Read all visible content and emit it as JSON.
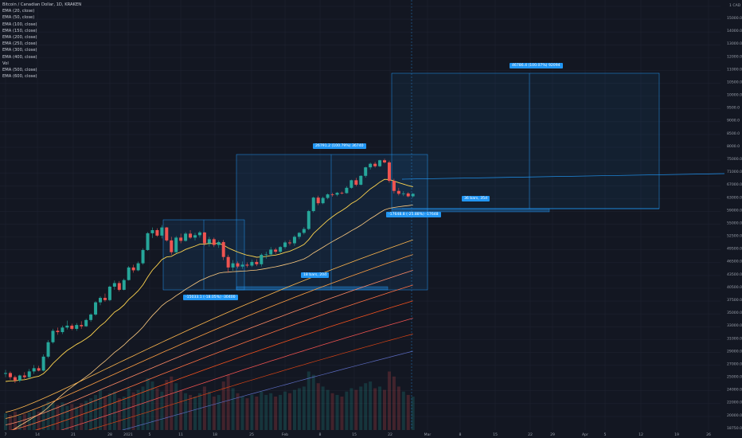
{
  "header": {
    "title": "Bitcoin / Canadian Dollar, 1D, KRAKEN",
    "indicators": [
      "EMA (20, close)",
      "EMA (50, close)",
      "EMA (100, close)",
      "EMA (150, close)",
      "EMA (200, close)",
      "EMA (250, close)",
      "EMA (300, close)",
      "EMA (400, close)",
      "Vol",
      "EMA (500, close)",
      "EMA (600, close)"
    ]
  },
  "price_axis": {
    "currency": "CAD",
    "currency_mark": "1",
    "labels": [
      "15000.0",
      "14000.0",
      "13000.0",
      "12000.0",
      "11000.0",
      "10500.0",
      "10000.0",
      "9500.0",
      "9000.0",
      "8500.0",
      "8000.0",
      "75000.0",
      "71000.0",
      "67000.0",
      "63000.0",
      "59000.0",
      "55000.0",
      "52500.0",
      "49500.0",
      "46500.0",
      "43500.0",
      "40500.0",
      "37500.0",
      "35000.0",
      "33000.0",
      "31000.0",
      "29000.0",
      "27000.0",
      "25000.0",
      "24000.0",
      "22000.0",
      "20000.0",
      "18750.0"
    ]
  },
  "time_axis": {
    "labels": [
      "7",
      "14",
      "21",
      "28",
      "2021",
      "5",
      "11",
      "18",
      "25",
      "Feb",
      "8",
      "15",
      "22",
      "Mar",
      "8",
      "15",
      "22",
      "29",
      "Apr",
      "5",
      "12",
      "19",
      "26"
    ]
  },
  "annotations": {
    "measure_top": "26791.2 (100.79%) 36740",
    "measure_left": "-15033.1 (-18.05%) -30400",
    "measure_left_bars": "18 bars, 20d",
    "measure_right_lower": "-17648.8 (-25.88%) -17648",
    "measure_right_upper": "46786.4 (100.07%) 92094",
    "measure_right_bars": "36 bars, 35d"
  },
  "colors": {
    "background": "#131722",
    "up": "#26a69a",
    "down": "#ef5350",
    "ema20": "#ffd54f",
    "ema_mid": "#ff9f43",
    "ema_long": "#ef5350",
    "measure": "#2196f3"
  },
  "chart_data": {
    "type": "candlestick",
    "title": "Bitcoin / Canadian Dollar, 1D, KRAKEN",
    "x_start": "2020-12-03",
    "candles": [
      [
        23300,
        23800,
        22900,
        23400
      ],
      [
        23400,
        23600,
        22600,
        22900
      ],
      [
        22900,
        23100,
        22200,
        22500
      ],
      [
        22500,
        23200,
        22300,
        23100
      ],
      [
        23100,
        23500,
        22700,
        22900
      ],
      [
        22900,
        23900,
        22700,
        23600
      ],
      [
        23600,
        24400,
        23300,
        24000
      ],
      [
        24000,
        24300,
        23600,
        23700
      ],
      [
        23700,
        25800,
        23600,
        25500
      ],
      [
        25500,
        27800,
        25300,
        27500
      ],
      [
        27500,
        29500,
        27300,
        29200
      ],
      [
        29200,
        29700,
        28600,
        29000
      ],
      [
        29000,
        30000,
        28700,
        29700
      ],
      [
        29700,
        30800,
        29400,
        30000
      ],
      [
        30000,
        30300,
        29300,
        29500
      ],
      [
        29500,
        30400,
        29200,
        30100
      ],
      [
        30100,
        30700,
        29500,
        29900
      ],
      [
        29900,
        31100,
        29800,
        30900
      ],
      [
        30900,
        32000,
        30600,
        31800
      ],
      [
        31800,
        34100,
        31600,
        33900
      ],
      [
        33900,
        35000,
        33400,
        34700
      ],
      [
        34700,
        35500,
        34000,
        34300
      ],
      [
        34300,
        37000,
        34100,
        36800
      ],
      [
        36800,
        38000,
        36200,
        37500
      ],
      [
        37500,
        37900,
        35900,
        36200
      ],
      [
        36200,
        38400,
        36100,
        38100
      ],
      [
        38100,
        41000,
        38000,
        40700
      ],
      [
        40700,
        41300,
        39600,
        40100
      ],
      [
        40100,
        42000,
        39900,
        41600
      ],
      [
        41600,
        45000,
        41300,
        44600
      ],
      [
        44600,
        49000,
        44400,
        48700
      ],
      [
        48700,
        50200,
        47500,
        49500
      ],
      [
        49500,
        50000,
        47800,
        48100
      ],
      [
        48100,
        50800,
        47400,
        50200
      ],
      [
        50200,
        50300,
        46600,
        46900
      ],
      [
        46900,
        47800,
        43500,
        44100
      ],
      [
        44100,
        48000,
        43900,
        47600
      ],
      [
        47600,
        48600,
        46200,
        46800
      ],
      [
        46800,
        49000,
        46600,
        48600
      ],
      [
        48600,
        49500,
        47300,
        47600
      ],
      [
        47600,
        48800,
        46900,
        48200
      ],
      [
        48200,
        49300,
        47600,
        48900
      ],
      [
        48900,
        49000,
        45600,
        46200
      ],
      [
        46200,
        47800,
        45400,
        47200
      ],
      [
        47200,
        47600,
        45300,
        45800
      ],
      [
        45800,
        46900,
        45100,
        46500
      ],
      [
        46500,
        47000,
        42300,
        43000
      ],
      [
        43000,
        43500,
        39600,
        40700
      ],
      [
        40700,
        42300,
        40000,
        41600
      ],
      [
        41600,
        42000,
        40500,
        40900
      ],
      [
        40900,
        42000,
        40400,
        41300
      ],
      [
        41300,
        41800,
        40700,
        41100
      ],
      [
        41100,
        42400,
        40800,
        41900
      ],
      [
        41900,
        42500,
        41000,
        41400
      ],
      [
        41400,
        43800,
        40900,
        43500
      ],
      [
        43500,
        44200,
        42600,
        43600
      ],
      [
        43600,
        45300,
        43200,
        44700
      ],
      [
        44700,
        45100,
        43700,
        44200
      ],
      [
        44200,
        45500,
        43800,
        45300
      ],
      [
        45300,
        46800,
        44900,
        46400
      ],
      [
        46400,
        47000,
        45700,
        46200
      ],
      [
        46200,
        48200,
        45600,
        47800
      ],
      [
        47800,
        49000,
        47200,
        48800
      ],
      [
        48800,
        50300,
        48400,
        49800
      ],
      [
        49800,
        55000,
        49500,
        54700
      ],
      [
        54700,
        59000,
        54300,
        58700
      ],
      [
        58700,
        59300,
        56400,
        57000
      ],
      [
        57000,
        59000,
        56700,
        58600
      ],
      [
        58600,
        60000,
        58200,
        59700
      ],
      [
        59700,
        60200,
        59000,
        59600
      ],
      [
        59600,
        60500,
        59100,
        60200
      ],
      [
        60200,
        60600,
        59700,
        60100
      ],
      [
        60100,
        62300,
        59900,
        61800
      ],
      [
        61800,
        64500,
        61500,
        64300
      ],
      [
        64300,
        65100,
        62300,
        62800
      ],
      [
        62800,
        66000,
        62600,
        65800
      ],
      [
        65800,
        69000,
        65200,
        68800
      ],
      [
        68800,
        70500,
        68000,
        70100
      ],
      [
        70100,
        70800,
        68700,
        69200
      ],
      [
        69200,
        71600,
        68900,
        71400
      ],
      [
        71400,
        72000,
        70200,
        70600
      ],
      [
        70600,
        71200,
        63500,
        64100
      ],
      [
        64100,
        64800,
        60000,
        60800
      ],
      [
        60800,
        61800,
        59400,
        59900
      ],
      [
        59900,
        60700,
        59200,
        60000
      ],
      [
        60000,
        60400,
        58800,
        59100
      ],
      [
        59100,
        60100,
        58700,
        59900
      ]
    ],
    "volume": [
      20,
      18,
      22,
      17,
      19,
      21,
      24,
      22,
      30,
      34,
      32,
      30,
      33,
      29,
      31,
      28,
      32,
      35,
      38,
      42,
      48,
      40,
      44,
      46,
      38,
      40,
      50,
      45,
      48,
      52,
      62,
      58,
      50,
      46,
      60,
      64,
      56,
      48,
      44,
      42,
      40,
      44,
      52,
      46,
      40,
      42,
      58,
      66,
      50,
      44,
      40,
      38,
      42,
      40,
      46,
      42,
      44,
      40,
      42,
      46,
      44,
      48,
      50,
      52,
      70,
      66,
      56,
      52,
      48,
      44,
      42,
      40,
      46,
      50,
      48,
      52,
      56,
      58,
      50,
      52,
      48,
      70,
      64,
      52,
      46,
      42,
      40
    ]
  }
}
